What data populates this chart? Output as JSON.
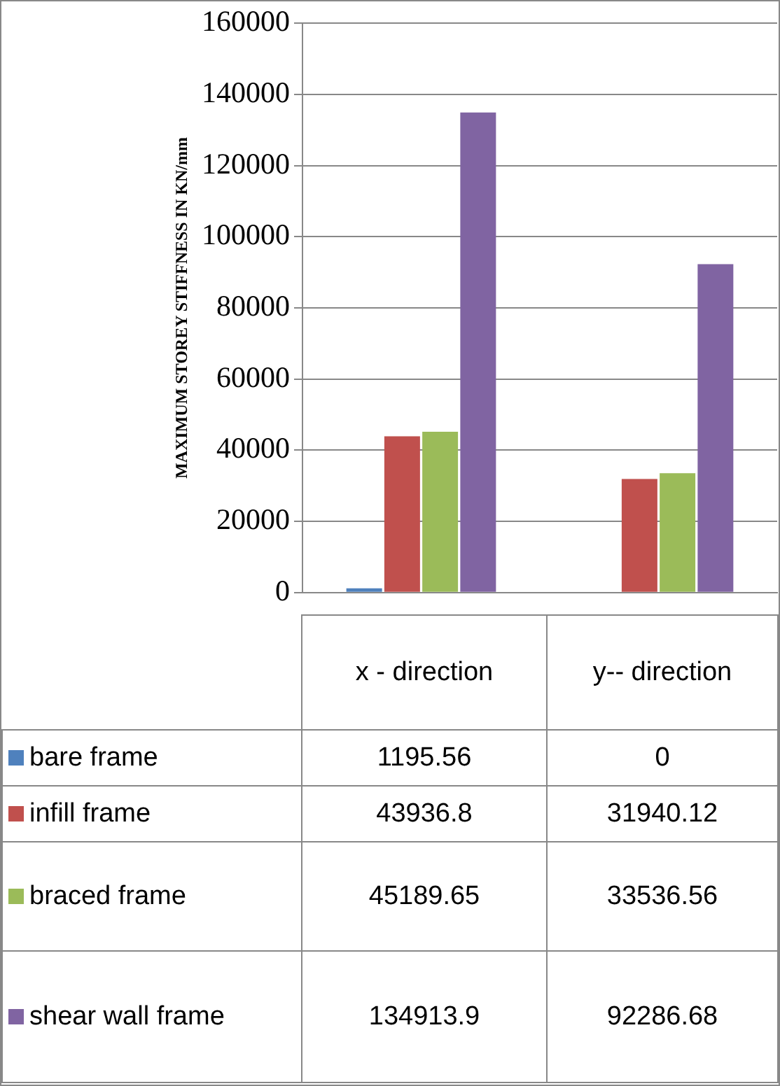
{
  "chart_data": {
    "type": "bar",
    "ylabel": "MAXIMUM STOREY STIFFNESS IN KN/mm",
    "categories": [
      "x - direction",
      "y-- direction"
    ],
    "series": [
      {
        "name": "bare frame",
        "color": "#4f81bd",
        "values": [
          1195.56,
          0
        ]
      },
      {
        "name": "infill frame",
        "color": "#c0504d",
        "values": [
          43936.8,
          31940.12
        ]
      },
      {
        "name": "braced frame",
        "color": "#9bbb59",
        "values": [
          45189.65,
          33536.56
        ]
      },
      {
        "name": "shear wall frame",
        "color": "#8064a2",
        "values": [
          134913.9,
          92286.68
        ]
      }
    ],
    "ylim": [
      0,
      160000
    ],
    "yticks": [
      0,
      20000,
      40000,
      60000,
      80000,
      100000,
      120000,
      140000,
      160000
    ],
    "grid": "y",
    "legend": "bottom",
    "data_labels": true
  }
}
